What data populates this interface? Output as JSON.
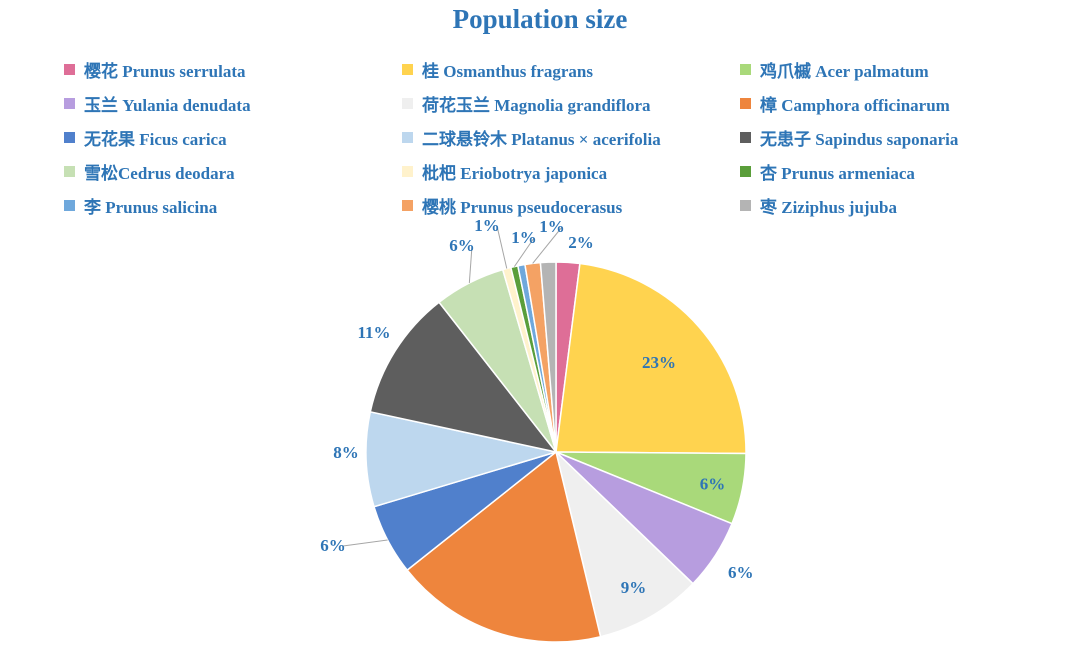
{
  "chart_data": {
    "type": "pie",
    "title": "Population size",
    "legend_position": "top",
    "slices": [
      {
        "name": "樱花 Prunus serrulata",
        "value": 2,
        "label": "2%",
        "color": "#DE6E97"
      },
      {
        "name": "桂 Osmanthus fragrans",
        "value": 23,
        "label": "23%",
        "color": "#FFD34F"
      },
      {
        "name": "鸡爪槭 Acer palmatum",
        "value": 6,
        "label": "6%",
        "color": "#A9D97A"
      },
      {
        "name": "玉兰 Yulania denudata",
        "value": 6,
        "label": "6%",
        "color": "#B79DDF"
      },
      {
        "name": "荷花玉兰 Magnolia grandiflora",
        "value": 9,
        "label": "9%",
        "color": "#EFEFEF"
      },
      {
        "name": "樟 Camphora officinarum",
        "value": 18,
        "label": "18%",
        "color": "#EE853D"
      },
      {
        "name": "无花果 Ficus carica",
        "value": 6,
        "label": "6%",
        "color": "#5080CC"
      },
      {
        "name": "二球悬铃木 Platanus × acerifolia",
        "value": 8,
        "label": "8%",
        "color": "#BDD7EE"
      },
      {
        "name": "无患子 Sapindus saponaria",
        "value": 11,
        "label": "11%",
        "color": "#5E5E5E"
      },
      {
        "name": "雪松Cedrus deodara",
        "value": 6,
        "label": "6%",
        "color": "#C6E0B4"
      },
      {
        "name": "枇杷 Eriobotrya japonica",
        "value": 0.7,
        "label": "1%",
        "color": "#FFF2CC"
      },
      {
        "name": "杏 Prunus armeniaca",
        "value": 0.6,
        "label": "1%",
        "color": "#5A9E3A"
      },
      {
        "name": "李 Prunus salicina",
        "value": 0.6,
        "label": "1%",
        "color": "#6FA8DC"
      },
      {
        "name": "樱桃 Prunus pseudocerasus",
        "value": 1.3,
        "label": "1%",
        "color": "#F4A264"
      },
      {
        "name": "枣 Ziziphus jujuba",
        "value": 1.3,
        "label": "",
        "color": "#B4B4B4"
      }
    ]
  }
}
